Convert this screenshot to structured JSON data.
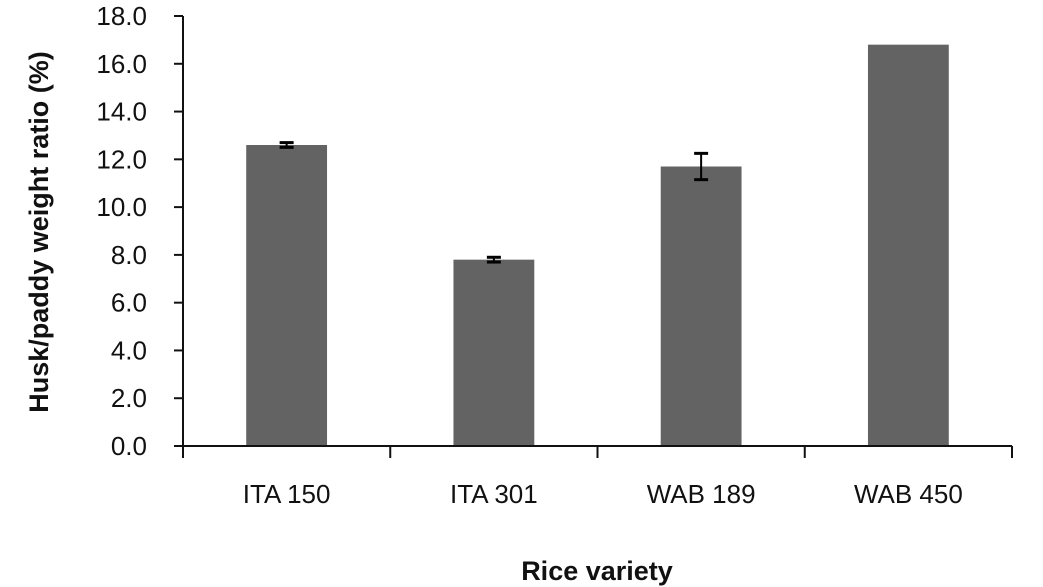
{
  "chart_data": {
    "type": "bar",
    "title": "",
    "xlabel": "Rice variety",
    "ylabel": "Husk/paddy weight ratio (%)",
    "categories": [
      "ITA 150",
      "ITA 301",
      "WAB 189",
      "WAB 450"
    ],
    "values": [
      12.6,
      7.8,
      11.7,
      16.8
    ],
    "error": [
      0.1,
      0.1,
      0.55,
      0.0
    ],
    "ylim": [
      0,
      18
    ],
    "yticks": [
      "0.0",
      "2.0",
      "4.0",
      "6.0",
      "8.0",
      "10.0",
      "12.0",
      "14.0",
      "16.0",
      "18.0"
    ],
    "grid": false,
    "legend": null,
    "bar_color": "#636363"
  }
}
